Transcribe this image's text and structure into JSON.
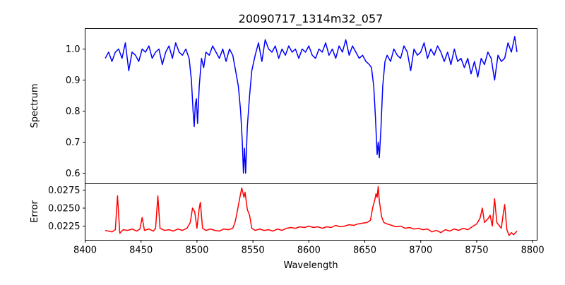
{
  "chart_data": [
    {
      "type": "line",
      "title": "20090717_1314m32_057",
      "xlabel": "",
      "ylabel": "Spectrum",
      "xlim": [
        8400,
        8804
      ],
      "ylim": [
        0.566,
        1.066
      ],
      "yticks": [
        "0.6",
        "0.7",
        "0.8",
        "0.9",
        "1.0"
      ],
      "ytick_values": [
        0.6,
        0.7,
        0.8,
        0.9,
        1.0
      ],
      "color": "#0000ff",
      "series": [
        {
          "name": "Spectrum",
          "x": [
            8418,
            8421,
            8424,
            8427,
            8430,
            8433,
            8436,
            8439,
            8442,
            8445,
            8448,
            8451,
            8454,
            8457,
            8460,
            8463,
            8466,
            8469,
            8472,
            8475,
            8478,
            8481,
            8484,
            8487,
            8490,
            8493,
            8495,
            8496.5,
            8497.5,
            8498.5,
            8499.5,
            8500.5,
            8502,
            8504,
            8506,
            8508,
            8511,
            8514,
            8517,
            8520,
            8523,
            8526,
            8529,
            8532,
            8535,
            8537,
            8539,
            8540.5,
            8541.5,
            8542.5,
            8543.5,
            8545,
            8547,
            8549,
            8552,
            8555,
            8558,
            8561,
            8564,
            8567,
            8570,
            8573,
            8576,
            8579,
            8582,
            8585,
            8588,
            8591,
            8594,
            8597,
            8600,
            8603,
            8606,
            8609,
            8612,
            8615,
            8618,
            8621,
            8624,
            8627,
            8630,
            8633,
            8636,
            8639,
            8642,
            8645,
            8648,
            8651,
            8654,
            8656,
            8658,
            8659.5,
            8661,
            8662,
            8663,
            8664.5,
            8666,
            8668,
            8670,
            8673,
            8676,
            8679,
            8682,
            8685,
            8688,
            8691,
            8694,
            8697,
            8700,
            8703,
            8706,
            8709,
            8712,
            8715,
            8718,
            8721,
            8724,
            8727,
            8730,
            8733,
            8736,
            8739,
            8742,
            8745,
            8748,
            8751,
            8754,
            8757,
            8760,
            8763,
            8766,
            8769,
            8772,
            8775,
            8778,
            8781,
            8784,
            8786
          ],
          "y": [
            0.97,
            0.99,
            0.96,
            0.99,
            1.0,
            0.97,
            1.02,
            0.93,
            0.99,
            0.98,
            0.96,
            1.0,
            0.99,
            1.01,
            0.97,
            0.99,
            1.0,
            0.95,
            0.99,
            1.01,
            0.97,
            1.02,
            0.99,
            0.98,
            1.0,
            0.97,
            0.9,
            0.8,
            0.75,
            0.82,
            0.84,
            0.76,
            0.88,
            0.97,
            0.94,
            0.99,
            0.98,
            1.01,
            0.99,
            0.97,
            1.0,
            0.96,
            1.0,
            0.98,
            0.92,
            0.88,
            0.8,
            0.7,
            0.6,
            0.68,
            0.6,
            0.75,
            0.85,
            0.93,
            0.98,
            1.02,
            0.96,
            1.03,
            1.0,
            0.99,
            1.01,
            0.97,
            1.0,
            0.98,
            1.01,
            0.99,
            1.0,
            0.97,
            1.0,
            0.99,
            1.01,
            0.98,
            0.97,
            1.0,
            0.99,
            1.02,
            0.98,
            1.0,
            0.97,
            1.01,
            0.99,
            1.03,
            0.98,
            1.01,
            0.99,
            0.97,
            0.98,
            0.96,
            0.95,
            0.94,
            0.88,
            0.78,
            0.66,
            0.7,
            0.65,
            0.75,
            0.88,
            0.96,
            0.98,
            0.96,
            1.0,
            0.98,
            0.97,
            1.01,
            0.99,
            0.93,
            1.0,
            0.98,
            0.99,
            1.02,
            0.97,
            1.0,
            0.98,
            1.01,
            0.99,
            0.96,
            0.99,
            0.95,
            1.0,
            0.96,
            0.97,
            0.94,
            0.97,
            0.92,
            0.96,
            0.91,
            0.97,
            0.95,
            0.99,
            0.97,
            0.9,
            0.98,
            0.96,
            0.97,
            1.02,
            0.99,
            1.04,
            0.99
          ]
        }
      ]
    },
    {
      "type": "line",
      "xlabel": "Wavelength",
      "ylabel": "Error",
      "xlim": [
        8400,
        8804
      ],
      "ylim": [
        0.02054,
        0.02838
      ],
      "xticks": [
        "8400",
        "8450",
        "8500",
        "8550",
        "8600",
        "8650",
        "8700",
        "8750",
        "8800"
      ],
      "xtick_values": [
        8400,
        8450,
        8500,
        8550,
        8600,
        8650,
        8700,
        8750,
        8800
      ],
      "yticks": [
        "0.0225",
        "0.0250",
        "0.0275"
      ],
      "ytick_values": [
        0.0225,
        0.025,
        0.0275
      ],
      "color": "#ff0000",
      "series": [
        {
          "name": "Error",
          "x": [
            8418,
            8424,
            8427,
            8429,
            8431,
            8434,
            8438,
            8442,
            8446,
            8449,
            8451,
            8453,
            8457,
            8461,
            8463,
            8465,
            8467,
            8471,
            8475,
            8479,
            8483,
            8487,
            8491,
            8494,
            8496,
            8498,
            8500,
            8502,
            8503,
            8505,
            8508,
            8512,
            8516,
            8520,
            8524,
            8528,
            8532,
            8534,
            8536,
            8538,
            8540,
            8542,
            8543,
            8545,
            8547,
            8549,
            8552,
            8556,
            8560,
            8564,
            8568,
            8572,
            8576,
            8580,
            8584,
            8588,
            8592,
            8596,
            8600,
            8604,
            8608,
            8612,
            8616,
            8620,
            8624,
            8628,
            8632,
            8636,
            8640,
            8644,
            8648,
            8652,
            8655,
            8657,
            8659,
            8660,
            8661,
            8662,
            8663,
            8665,
            8667,
            8670,
            8674,
            8678,
            8682,
            8686,
            8690,
            8694,
            8698,
            8702,
            8706,
            8710,
            8714,
            8718,
            8722,
            8726,
            8730,
            8734,
            8738,
            8742,
            8746,
            8750,
            8753,
            8755,
            8757,
            8760,
            8762,
            8764,
            8766,
            8768,
            8770,
            8772,
            8774,
            8775,
            8777,
            8779,
            8781,
            8783,
            8786
          ],
          "y": [
            0.0219,
            0.0217,
            0.022,
            0.0267,
            0.0215,
            0.022,
            0.0219,
            0.0221,
            0.0218,
            0.0221,
            0.0237,
            0.0219,
            0.0221,
            0.0218,
            0.0222,
            0.0267,
            0.0222,
            0.0219,
            0.022,
            0.0218,
            0.0221,
            0.0219,
            0.0222,
            0.023,
            0.025,
            0.0245,
            0.0222,
            0.025,
            0.0258,
            0.0222,
            0.0219,
            0.0221,
            0.0219,
            0.0218,
            0.0221,
            0.022,
            0.0222,
            0.023,
            0.0245,
            0.0262,
            0.0278,
            0.0265,
            0.0272,
            0.0248,
            0.024,
            0.0222,
            0.0219,
            0.0221,
            0.0219,
            0.022,
            0.0218,
            0.0221,
            0.0219,
            0.0222,
            0.0223,
            0.0222,
            0.0224,
            0.0223,
            0.0225,
            0.0223,
            0.0224,
            0.0222,
            0.0224,
            0.0223,
            0.0226,
            0.0224,
            0.0225,
            0.0227,
            0.0226,
            0.0228,
            0.0229,
            0.023,
            0.0233,
            0.025,
            0.0262,
            0.027,
            0.0265,
            0.028,
            0.026,
            0.0238,
            0.023,
            0.0228,
            0.0226,
            0.0224,
            0.0225,
            0.0222,
            0.0223,
            0.0221,
            0.0222,
            0.022,
            0.0221,
            0.0217,
            0.0219,
            0.0216,
            0.022,
            0.0218,
            0.0221,
            0.0219,
            0.0222,
            0.022,
            0.0224,
            0.0228,
            0.0236,
            0.025,
            0.023,
            0.0235,
            0.024,
            0.0225,
            0.0263,
            0.023,
            0.0226,
            0.0222,
            0.0245,
            0.0255,
            0.022,
            0.0212,
            0.0216,
            0.0213,
            0.0218
          ]
        }
      ]
    }
  ]
}
